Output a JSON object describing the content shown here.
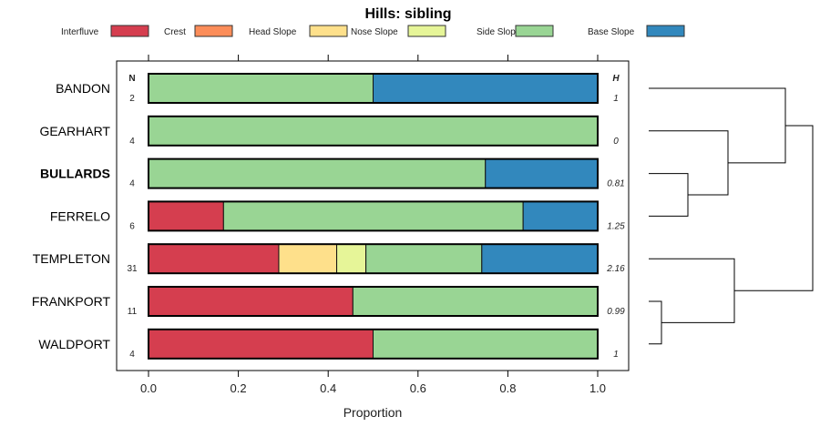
{
  "chart_data": {
    "type": "bar",
    "orientation": "horizontal-stacked",
    "title": "Hills: sibling",
    "xlabel": "Proportion",
    "xlim": [
      0,
      1
    ],
    "xticks": [
      "0.0",
      "0.2",
      "0.4",
      "0.6",
      "0.8",
      "1.0"
    ],
    "legend_position": "top",
    "legend": [
      {
        "name": "Interfluve",
        "color": "#D53E4F"
      },
      {
        "name": "Crest",
        "color": "#FC8D59"
      },
      {
        "name": "Head Slope",
        "color": "#FEE08B"
      },
      {
        "name": "Nose Slope",
        "color": "#E6F598"
      },
      {
        "name": "Side Slope",
        "color": "#99D594"
      },
      {
        "name": "Base Slope",
        "color": "#3288BD"
      }
    ],
    "n_header": "N",
    "h_header": "H",
    "rows": [
      {
        "name": "BANDON",
        "bold": false,
        "n": "2",
        "h": "1",
        "values": [
          0,
          0,
          0,
          0,
          0.5,
          0.5
        ]
      },
      {
        "name": "GEARHART",
        "bold": false,
        "n": "4",
        "h": "0",
        "values": [
          0,
          0,
          0,
          0,
          1.0,
          0
        ]
      },
      {
        "name": "BULLARDS",
        "bold": true,
        "n": "4",
        "h": "0.81",
        "values": [
          0,
          0,
          0,
          0,
          0.75,
          0.25
        ]
      },
      {
        "name": "FERRELO",
        "bold": false,
        "n": "6",
        "h": "1.25",
        "values": [
          0.167,
          0,
          0,
          0,
          0.667,
          0.167
        ]
      },
      {
        "name": "TEMPLETON",
        "bold": false,
        "n": "31",
        "h": "2.16",
        "values": [
          0.29,
          0,
          0.129,
          0.065,
          0.258,
          0.258
        ]
      },
      {
        "name": "FRANKPORT",
        "bold": false,
        "n": "11",
        "h": "0.99",
        "values": [
          0.455,
          0,
          0,
          0,
          0.545,
          0
        ]
      },
      {
        "name": "WALDPORT",
        "bold": false,
        "n": "4",
        "h": "1",
        "values": [
          0.5,
          0,
          0,
          0,
          0.5,
          0
        ]
      }
    ],
    "dendrogram_merges": [
      [
        "BULLARDS",
        "FERRELO"
      ],
      [
        "FRANKPORT",
        "WALDPORT"
      ],
      [
        "GEARHART",
        "BULLARDS+FERRELO"
      ],
      [
        "BANDON",
        "GEARHART+BULLARDS+FERRELO"
      ],
      [
        "TEMPLETON",
        "FRANKPORT+WALDPORT"
      ],
      [
        "top-cluster",
        "bottom-cluster"
      ]
    ]
  }
}
